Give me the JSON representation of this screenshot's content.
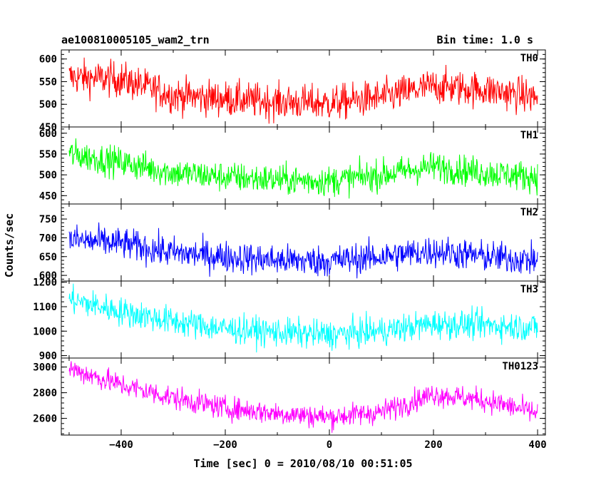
{
  "header": {
    "title": "ae100810005105_wam2_trn",
    "bin_time": "Bin time: 1.0 s"
  },
  "axes": {
    "xlabel": "Time [sec] 0 = 2010/08/10 00:51:05",
    "ylabel": "Counts/sec"
  },
  "chart_data": {
    "type": "line",
    "title": "ae100810005105_wam2_trn",
    "subtitle": "Bin time: 1.0 s",
    "xlabel": "Time [sec] 0 = 2010/08/10 00:51:05",
    "ylabel": "Counts/sec",
    "xlim": [
      -515,
      415
    ],
    "x_ticks": [
      -400,
      -200,
      0,
      200,
      400
    ],
    "x_tick_labels": [
      "−400",
      "−200",
      "0",
      "200",
      "400"
    ],
    "x_range": [
      -500,
      400
    ],
    "bin_time": 1.0,
    "grid": false,
    "legend": "none",
    "series": [
      {
        "name": "TH0",
        "color": "#ff0000",
        "ylim": [
          450,
          620
        ],
        "y_ticks": [
          450,
          500,
          550,
          600
        ],
        "y_tick_labels": [
          "450",
          "500",
          "550",
          "600"
        ],
        "trend": [
          [
            -500,
            560
          ],
          [
            -400,
            555
          ],
          [
            -300,
            520
          ],
          [
            -200,
            512
          ],
          [
            -100,
            505
          ],
          [
            0,
            502
          ],
          [
            100,
            515
          ],
          [
            200,
            540
          ],
          [
            300,
            532
          ],
          [
            400,
            515
          ]
        ],
        "noise_amplitude": 28
      },
      {
        "name": "TH1",
        "color": "#00ff00",
        "ylim": [
          430,
          615
        ],
        "y_ticks": [
          450,
          500,
          550,
          600
        ],
        "y_tick_labels": [
          "450",
          "500",
          "550",
          "600"
        ],
        "trend": [
          [
            -500,
            550
          ],
          [
            -400,
            530
          ],
          [
            -300,
            505
          ],
          [
            -200,
            495
          ],
          [
            -100,
            488
          ],
          [
            0,
            485
          ],
          [
            100,
            500
          ],
          [
            200,
            520
          ],
          [
            300,
            505
          ],
          [
            400,
            495
          ]
        ],
        "noise_amplitude": 26
      },
      {
        "name": "TH2",
        "color": "#0000ff",
        "ylim": [
          585,
          790
        ],
        "y_ticks": [
          600,
          650,
          700,
          750
        ],
        "y_tick_labels": [
          "600",
          "650",
          "700",
          "750"
        ],
        "trend": [
          [
            -500,
            695
          ],
          [
            -400,
            685
          ],
          [
            -300,
            660
          ],
          [
            -200,
            650
          ],
          [
            -100,
            640
          ],
          [
            0,
            638
          ],
          [
            100,
            650
          ],
          [
            200,
            665
          ],
          [
            300,
            650
          ],
          [
            400,
            640
          ]
        ],
        "noise_amplitude": 30
      },
      {
        "name": "TH3",
        "color": "#00ffff",
        "ylim": [
          890,
          1205
        ],
        "y_ticks": [
          900,
          1000,
          1100,
          1200
        ],
        "y_tick_labels": [
          "900",
          "1000",
          "1100",
          "1200"
        ],
        "trend": [
          [
            -500,
            1130
          ],
          [
            -400,
            1080
          ],
          [
            -300,
            1040
          ],
          [
            -200,
            1010
          ],
          [
            -100,
            995
          ],
          [
            0,
            985
          ],
          [
            100,
            1000
          ],
          [
            200,
            1030
          ],
          [
            300,
            1025
          ],
          [
            400,
            1015
          ]
        ],
        "noise_amplitude": 42
      },
      {
        "name": "TH0123",
        "color": "#ff00ff",
        "ylim": [
          2470,
          3070
        ],
        "y_ticks": [
          2600,
          2800,
          3000
        ],
        "y_tick_labels": [
          "2600",
          "2800",
          "3000"
        ],
        "trend": [
          [
            -500,
            2990
          ],
          [
            -400,
            2860
          ],
          [
            -300,
            2760
          ],
          [
            -200,
            2680
          ],
          [
            -100,
            2640
          ],
          [
            0,
            2610
          ],
          [
            100,
            2650
          ],
          [
            200,
            2790
          ],
          [
            300,
            2740
          ],
          [
            400,
            2640
          ]
        ],
        "noise_amplitude": 65
      }
    ]
  }
}
